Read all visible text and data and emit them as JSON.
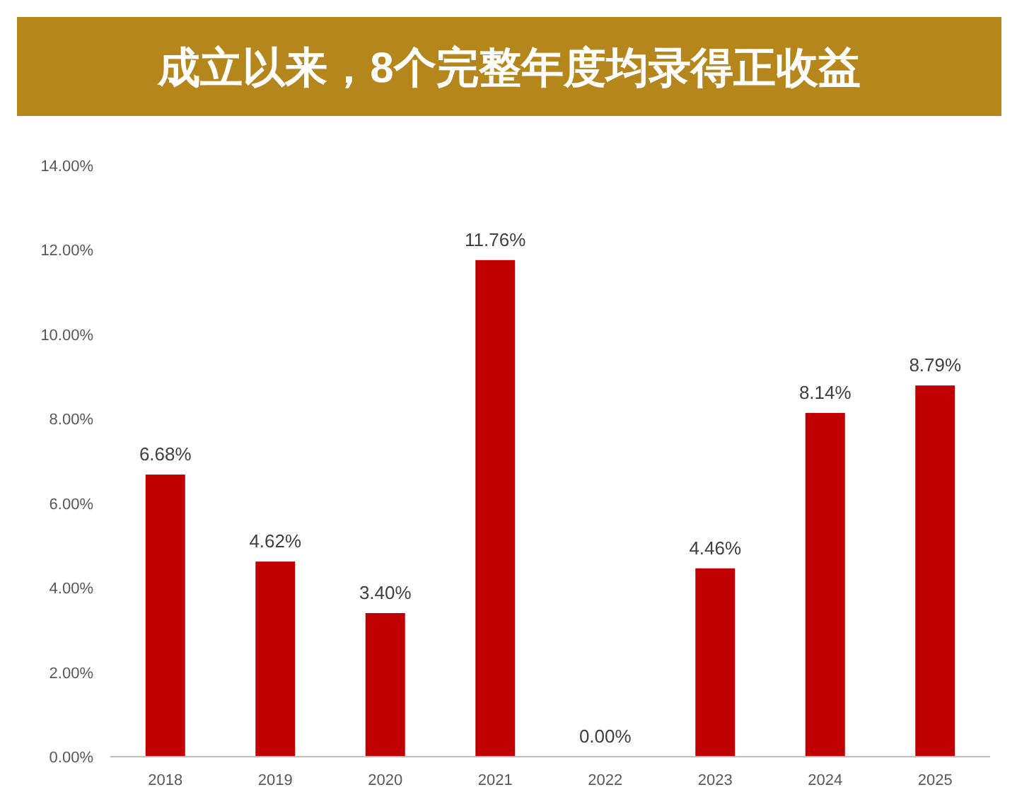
{
  "chart_data": {
    "type": "bar",
    "title": "成立以来，8个完整年度均录得正收益",
    "categories": [
      "2018",
      "2019",
      "2020",
      "2021",
      "2022",
      "2023",
      "2024",
      "2025"
    ],
    "values": [
      6.68,
      4.62,
      3.4,
      11.76,
      0.0,
      4.46,
      8.14,
      8.79
    ],
    "value_labels": [
      "6.68%",
      "4.62%",
      "3.40%",
      "11.76%",
      "0.00%",
      "4.46%",
      "8.14%",
      "8.79%"
    ],
    "color": "#c00000",
    "ylim": [
      0,
      14
    ],
    "yticks": [
      {
        "value": 0,
        "label": "0.00%"
      },
      {
        "value": 2,
        "label": "2.00%"
      },
      {
        "value": 4,
        "label": "4.00%"
      },
      {
        "value": 6,
        "label": "6.00%"
      },
      {
        "value": 8,
        "label": "8.00%"
      },
      {
        "value": 10,
        "label": "10.00%"
      },
      {
        "value": 12,
        "label": "12.00%"
      },
      {
        "value": 14,
        "label": "14.00%"
      }
    ]
  }
}
